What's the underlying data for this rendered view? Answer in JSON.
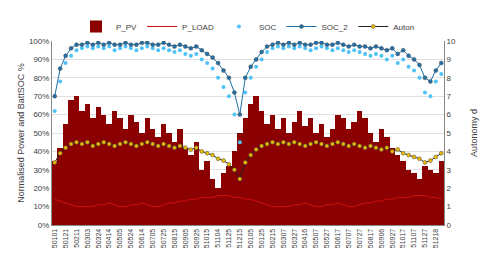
{
  "chart_data": {
    "type": "combo",
    "y_label": "Normalised Power and BattSOC %",
    "y2_label": "Autonomy d",
    "categories": [
      "50101",
      null,
      "50121",
      null,
      "50211",
      null,
      "50303",
      null,
      "50324",
      null,
      "50414",
      null,
      "50505",
      null,
      "50524",
      null,
      "50614",
      null,
      "50705",
      null,
      "50725",
      null,
      "50815",
      null,
      "50905",
      null,
      "50925",
      null,
      "51015",
      null,
      "51104",
      null,
      "51125",
      null,
      "51215",
      null,
      "50105",
      null,
      "50125",
      null,
      "50215",
      null,
      "50307",
      null,
      "50327",
      null,
      "50416",
      null,
      "50507",
      null,
      "50527",
      null,
      "50617",
      null,
      "50707",
      null,
      "50727",
      null,
      "50817",
      null,
      "50906",
      null,
      "50927",
      null,
      "51017",
      null,
      "51107",
      null,
      "51127",
      null,
      "51218",
      null
    ],
    "ylim": [
      0,
      100
    ],
    "yticks": [
      {
        "value": 0,
        "label": "0%"
      },
      {
        "value": 10,
        "label": "10%"
      },
      {
        "value": 20,
        "label": "20%"
      },
      {
        "value": 30,
        "label": "30%"
      },
      {
        "value": 40,
        "label": "40%"
      },
      {
        "value": 50,
        "label": "50%"
      },
      {
        "value": 60,
        "label": "60%"
      },
      {
        "value": 70,
        "label": "70%"
      },
      {
        "value": 80,
        "label": "80%"
      },
      {
        "value": 90,
        "label": "90%"
      },
      {
        "value": 100,
        "label": "100%"
      }
    ],
    "y2lim": [
      0,
      10
    ],
    "y2ticks": [
      0,
      1,
      2,
      3,
      4,
      5,
      6,
      7,
      8,
      9,
      10
    ],
    "grid": true,
    "legend": "top",
    "series": [
      {
        "name": "P_PV",
        "type": "bar",
        "color": "#8b0000",
        "values": [
          35,
          42,
          55,
          68,
          70,
          62,
          66,
          58,
          64,
          60,
          55,
          62,
          58,
          52,
          60,
          56,
          50,
          58,
          52,
          48,
          55,
          50,
          45,
          52,
          42,
          38,
          45,
          30,
          35,
          25,
          20,
          28,
          32,
          40,
          50,
          58,
          66,
          70,
          62,
          55,
          60,
          52,
          58,
          50,
          56,
          62,
          54,
          58,
          50,
          55,
          48,
          52,
          60,
          58,
          52,
          56,
          62,
          58,
          50,
          45,
          52,
          48,
          42,
          38,
          35,
          30,
          28,
          25,
          32,
          30,
          28,
          35
        ]
      },
      {
        "name": "P_LOAD",
        "type": "line",
        "color": "#d01010",
        "line_style": "solid",
        "values": [
          14,
          13,
          12,
          11,
          10,
          10,
          10,
          10,
          11,
          11,
          12,
          11,
          10,
          10,
          11,
          11,
          12,
          11,
          10,
          10,
          11,
          12,
          12,
          13,
          13,
          14,
          14,
          15,
          15,
          15,
          16,
          16,
          16,
          15,
          15,
          14,
          14,
          13,
          12,
          11,
          10,
          10,
          10,
          10,
          11,
          11,
          12,
          11,
          10,
          10,
          11,
          11,
          12,
          11,
          10,
          10,
          11,
          12,
          12,
          13,
          13,
          14,
          14,
          15,
          15,
          15,
          16,
          16,
          16,
          15,
          15,
          14
        ]
      },
      {
        "name": "SOC",
        "type": "scatter",
        "color": "#4fc3f7",
        "marker": "circle",
        "values": [
          62,
          78,
          88,
          92,
          95,
          96,
          97,
          96,
          97,
          96,
          97,
          95,
          96,
          97,
          96,
          95,
          96,
          97,
          96,
          95,
          96,
          95,
          94,
          95,
          93,
          92,
          93,
          90,
          88,
          85,
          80,
          75,
          70,
          60,
          45,
          72,
          80,
          86,
          90,
          94,
          96,
          97,
          96,
          97,
          96,
          97,
          96,
          95,
          96,
          97,
          96,
          95,
          96,
          95,
          94,
          95,
          94,
          93,
          92,
          93,
          92,
          90,
          92,
          88,
          90,
          86,
          84,
          80,
          72,
          70,
          78,
          82
        ]
      },
      {
        "name": "SOC_2",
        "type": "line",
        "color": "#1f6fa8",
        "marker": "circle",
        "line_style": "solid",
        "values": [
          70,
          85,
          92,
          96,
          98,
          98,
          99,
          98,
          99,
          98,
          99,
          98,
          98,
          99,
          98,
          98,
          99,
          99,
          98,
          98,
          99,
          98,
          97,
          98,
          97,
          96,
          97,
          95,
          93,
          91,
          88,
          84,
          80,
          72,
          60,
          80,
          86,
          90,
          94,
          97,
          98,
          99,
          98,
          99,
          98,
          99,
          98,
          98,
          99,
          99,
          98,
          98,
          99,
          98,
          97,
          98,
          97,
          97,
          96,
          97,
          96,
          95,
          96,
          93,
          95,
          92,
          90,
          87,
          80,
          78,
          84,
          88
        ]
      },
      {
        "name": "Auton",
        "type": "line",
        "axis": "y2",
        "color": "#e6b800",
        "marker": "circle",
        "line_style": "solid",
        "values": [
          3.4,
          3.9,
          4.2,
          4.4,
          4.5,
          4.4,
          4.5,
          4.3,
          4.4,
          4.5,
          4.4,
          4.3,
          4.4,
          4.5,
          4.4,
          4.3,
          4.4,
          4.5,
          4.4,
          4.3,
          4.4,
          4.3,
          4.2,
          4.3,
          4.2,
          4.1,
          4.2,
          4.0,
          3.9,
          3.8,
          3.6,
          3.5,
          3.3,
          3.0,
          2.5,
          3.4,
          3.8,
          4.1,
          4.3,
          4.4,
          4.5,
          4.4,
          4.5,
          4.4,
          4.5,
          4.4,
          4.3,
          4.4,
          4.5,
          4.4,
          4.3,
          4.4,
          4.5,
          4.4,
          4.3,
          4.4,
          4.3,
          4.2,
          4.3,
          4.2,
          4.1,
          4.2,
          4.0,
          4.1,
          3.9,
          3.8,
          3.7,
          3.6,
          3.4,
          3.5,
          3.7,
          3.9
        ]
      }
    ]
  }
}
